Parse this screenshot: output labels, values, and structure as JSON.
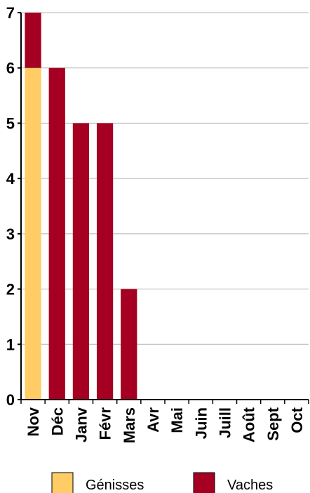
{
  "chart_data": {
    "type": "bar",
    "stacked": true,
    "categories": [
      "Nov",
      "Déc",
      "Janv",
      "Févr",
      "Mars",
      "Avr",
      "Mai",
      "Juin",
      "Juill",
      "Août",
      "Sept",
      "Oct"
    ],
    "series": [
      {
        "name": "Génisses",
        "color": "#FFCC66",
        "values": [
          6,
          0,
          0,
          0,
          0,
          0,
          0,
          0,
          0,
          0,
          0,
          0
        ]
      },
      {
        "name": "Vaches",
        "color": "#A50021",
        "values": [
          1,
          6,
          5,
          5,
          2,
          0,
          0,
          0,
          0,
          0,
          0,
          0
        ]
      }
    ],
    "title": "",
    "xlabel": "",
    "ylabel": "",
    "ylim": [
      0,
      7
    ],
    "yticks": [
      "0",
      "1",
      "2",
      "3",
      "4",
      "5",
      "6",
      "7"
    ],
    "grid": true,
    "legend_position": "bottom"
  }
}
